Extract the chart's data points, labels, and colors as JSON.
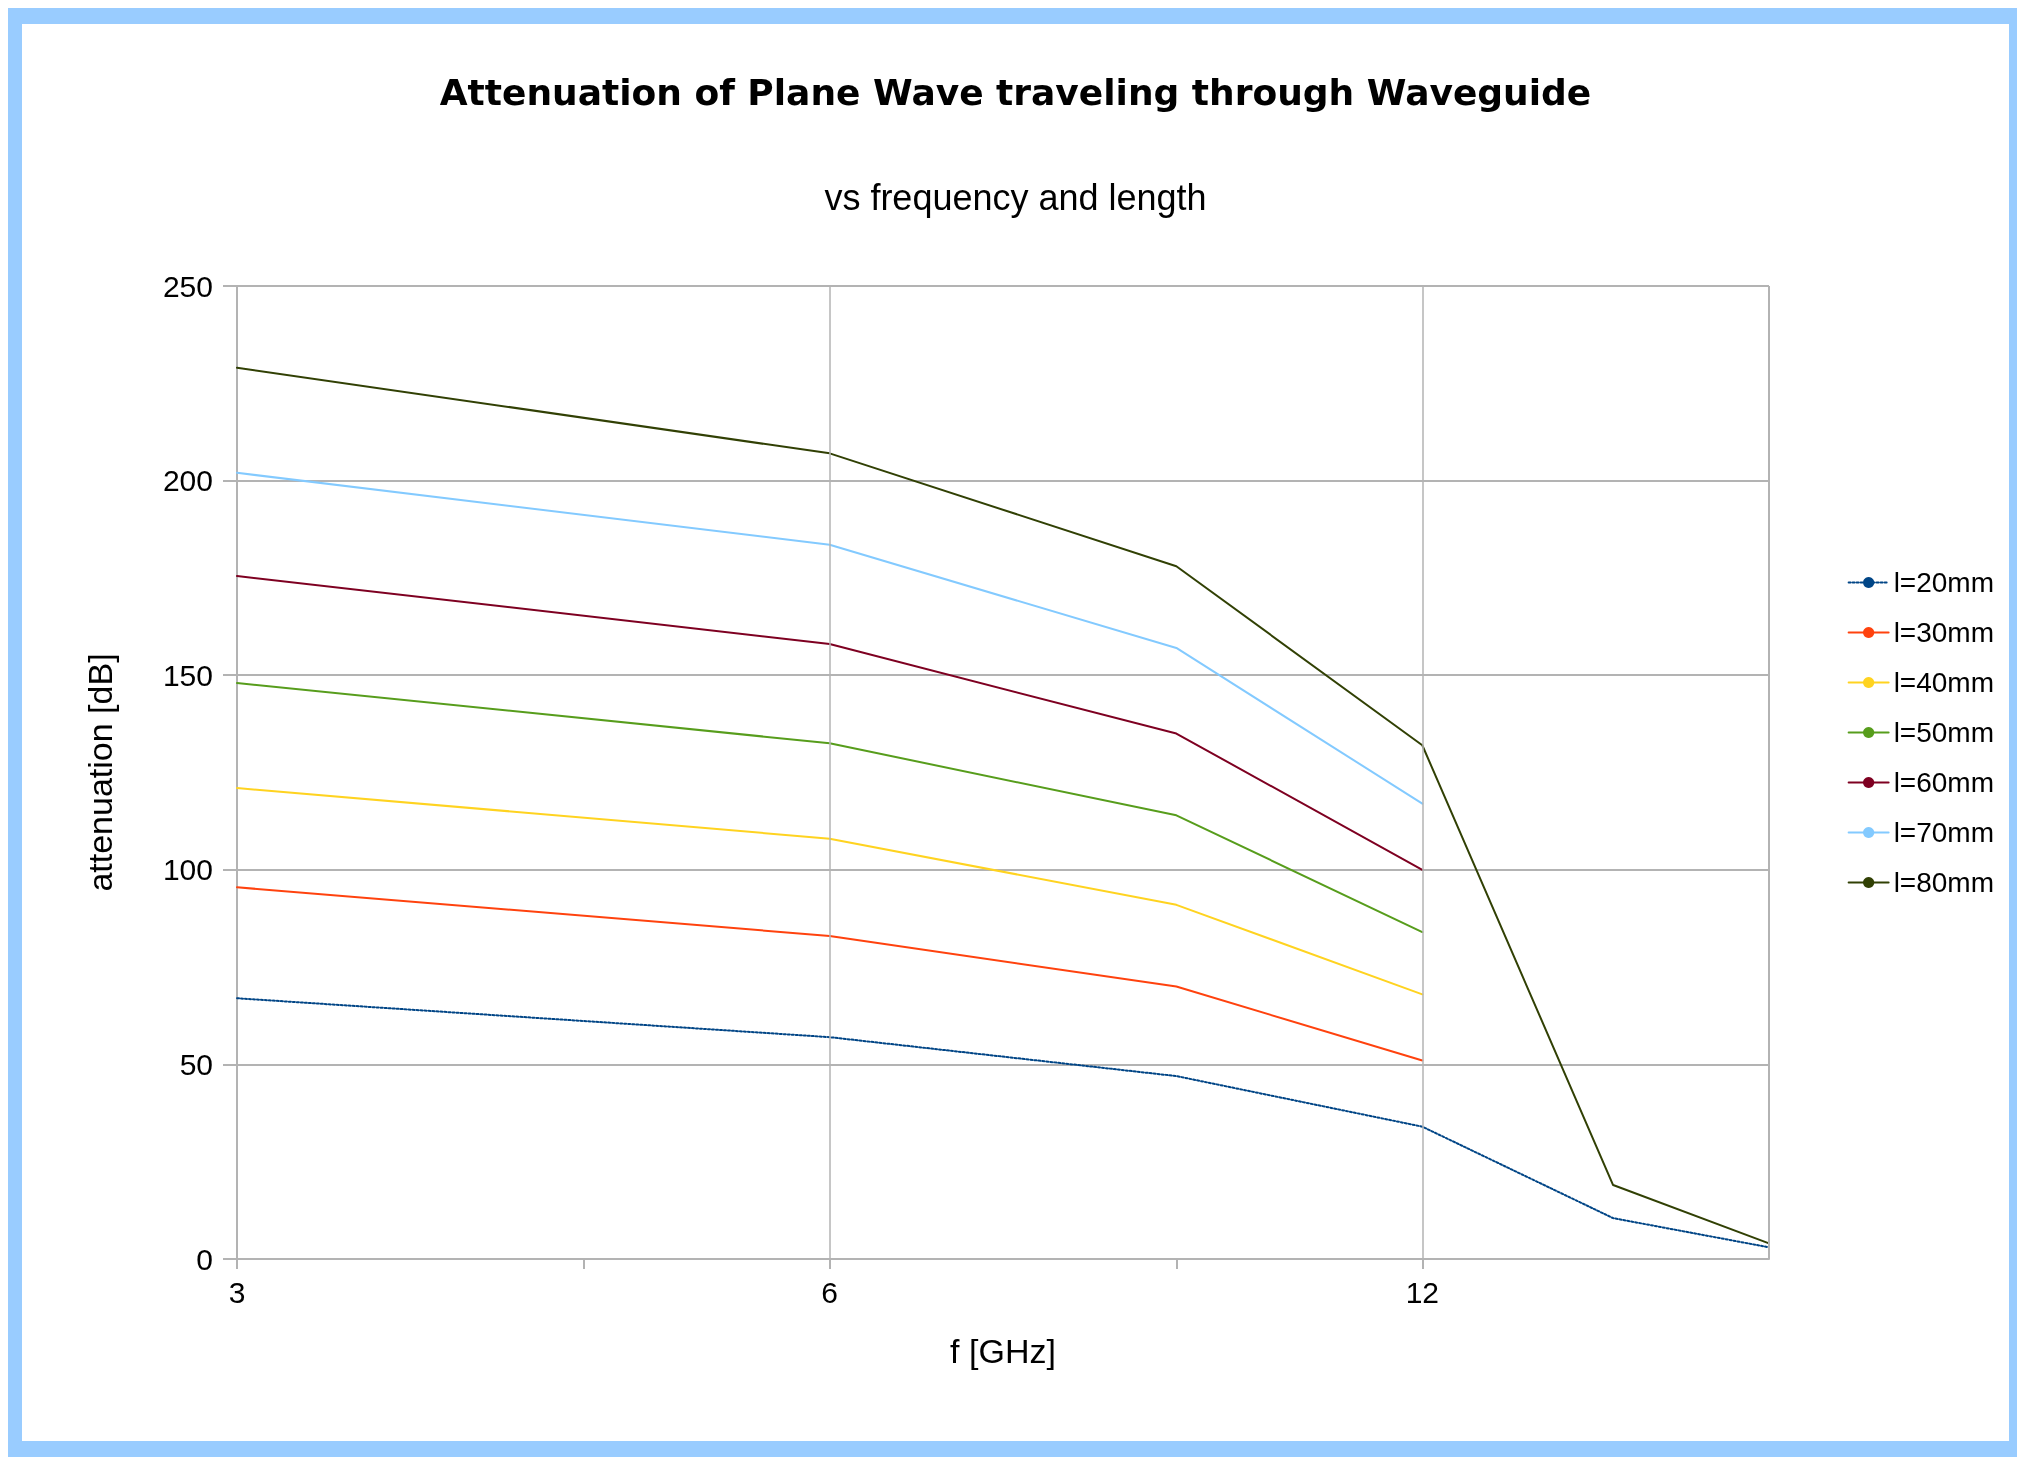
{
  "chart_data": {
    "type": "line",
    "title": "Attenuation of Plane Wave traveling through Waveguide",
    "subtitle": "vs frequency and length",
    "xlabel": "f [GHz]",
    "ylabel": "attenuation [dB]",
    "log": "x",
    "xlim": [
      3,
      18
    ],
    "xticks": [
      3,
      {
        "value": 4.5,
        "label": null
      },
      6,
      {
        "value": 9,
        "label": null
      },
      12
    ],
    "ylim": [
      0,
      250
    ],
    "yticks": [
      0,
      50,
      100,
      150,
      200,
      250
    ],
    "grid": true,
    "legend": "right",
    "marker": "none",
    "line_style": "solid",
    "series": [
      {
        "name": "l=20mm",
        "color": "#004586",
        "line_style": "dotted",
        "x": [
          3,
          6,
          9,
          12,
          15,
          18
        ],
        "values": [
          67,
          57,
          47,
          34,
          10.5,
          3
        ]
      },
      {
        "name": "l=30mm",
        "color": "#ff420e",
        "x": [
          3,
          6,
          9,
          12
        ],
        "values": [
          95.5,
          83,
          70,
          51
        ]
      },
      {
        "name": "l=40mm",
        "color": "#ffd320",
        "x": [
          3,
          6,
          9,
          12
        ],
        "values": [
          121,
          108,
          91,
          68
        ]
      },
      {
        "name": "l=50mm",
        "color": "#579d1c",
        "x": [
          3,
          6,
          9,
          12
        ],
        "values": [
          148,
          132.5,
          114,
          84
        ]
      },
      {
        "name": "l=60mm",
        "color": "#7e0021",
        "x": [
          3,
          6,
          9,
          12
        ],
        "values": [
          175.5,
          158,
          135,
          100
        ]
      },
      {
        "name": "l=70mm",
        "color": "#83caff",
        "x": [
          3,
          6,
          9,
          12
        ],
        "values": [
          202,
          183.5,
          157,
          117
        ]
      },
      {
        "name": "l=80mm",
        "color": "#314004",
        "x": [
          3,
          6,
          9,
          12,
          15,
          18
        ],
        "values": [
          229,
          207,
          178,
          132,
          19,
          4
        ]
      }
    ]
  }
}
